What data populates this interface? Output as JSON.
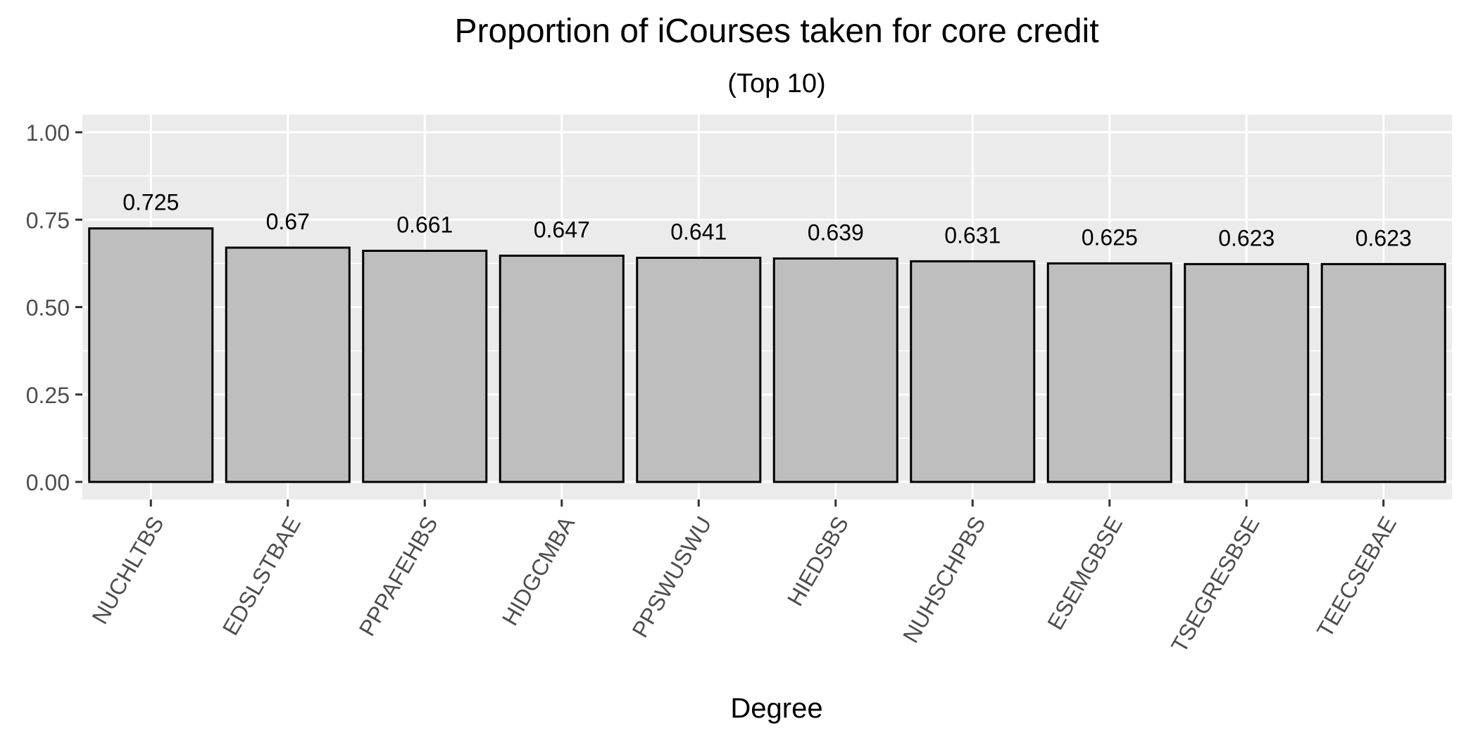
{
  "chart_data": {
    "type": "bar",
    "title": "Proportion of iCourses taken for core credit",
    "subtitle": "(Top 10)",
    "xlabel": "Degree",
    "ylabel": "",
    "ylim": [
      0,
      1.05
    ],
    "yticks": [
      "0.00",
      "0.25",
      "0.50",
      "0.75",
      "1.00"
    ],
    "categories": [
      "NUCHLTBS",
      "EDSLSTBAE",
      "PPPAFEHBS",
      "HIDGCMBA",
      "PPSWUSWU",
      "HIEDSBS",
      "NUHSCHPBS",
      "ESEMGBSE",
      "TSEGRESBSE",
      "TEECSEBAE"
    ],
    "values": [
      0.725,
      0.67,
      0.661,
      0.647,
      0.641,
      0.639,
      0.631,
      0.625,
      0.623,
      0.623
    ],
    "value_labels": [
      "0.725",
      "0.67",
      "0.661",
      "0.647",
      "0.641",
      "0.639",
      "0.631",
      "0.625",
      "0.623",
      "0.623"
    ],
    "grid": true,
    "colors": {
      "panel": "#ebebeb",
      "grid": "#ffffff",
      "bar_fill": "#bebebe",
      "bar_stroke": "#000000",
      "axis_text": "#4d4d4d",
      "text": "#000000"
    }
  }
}
